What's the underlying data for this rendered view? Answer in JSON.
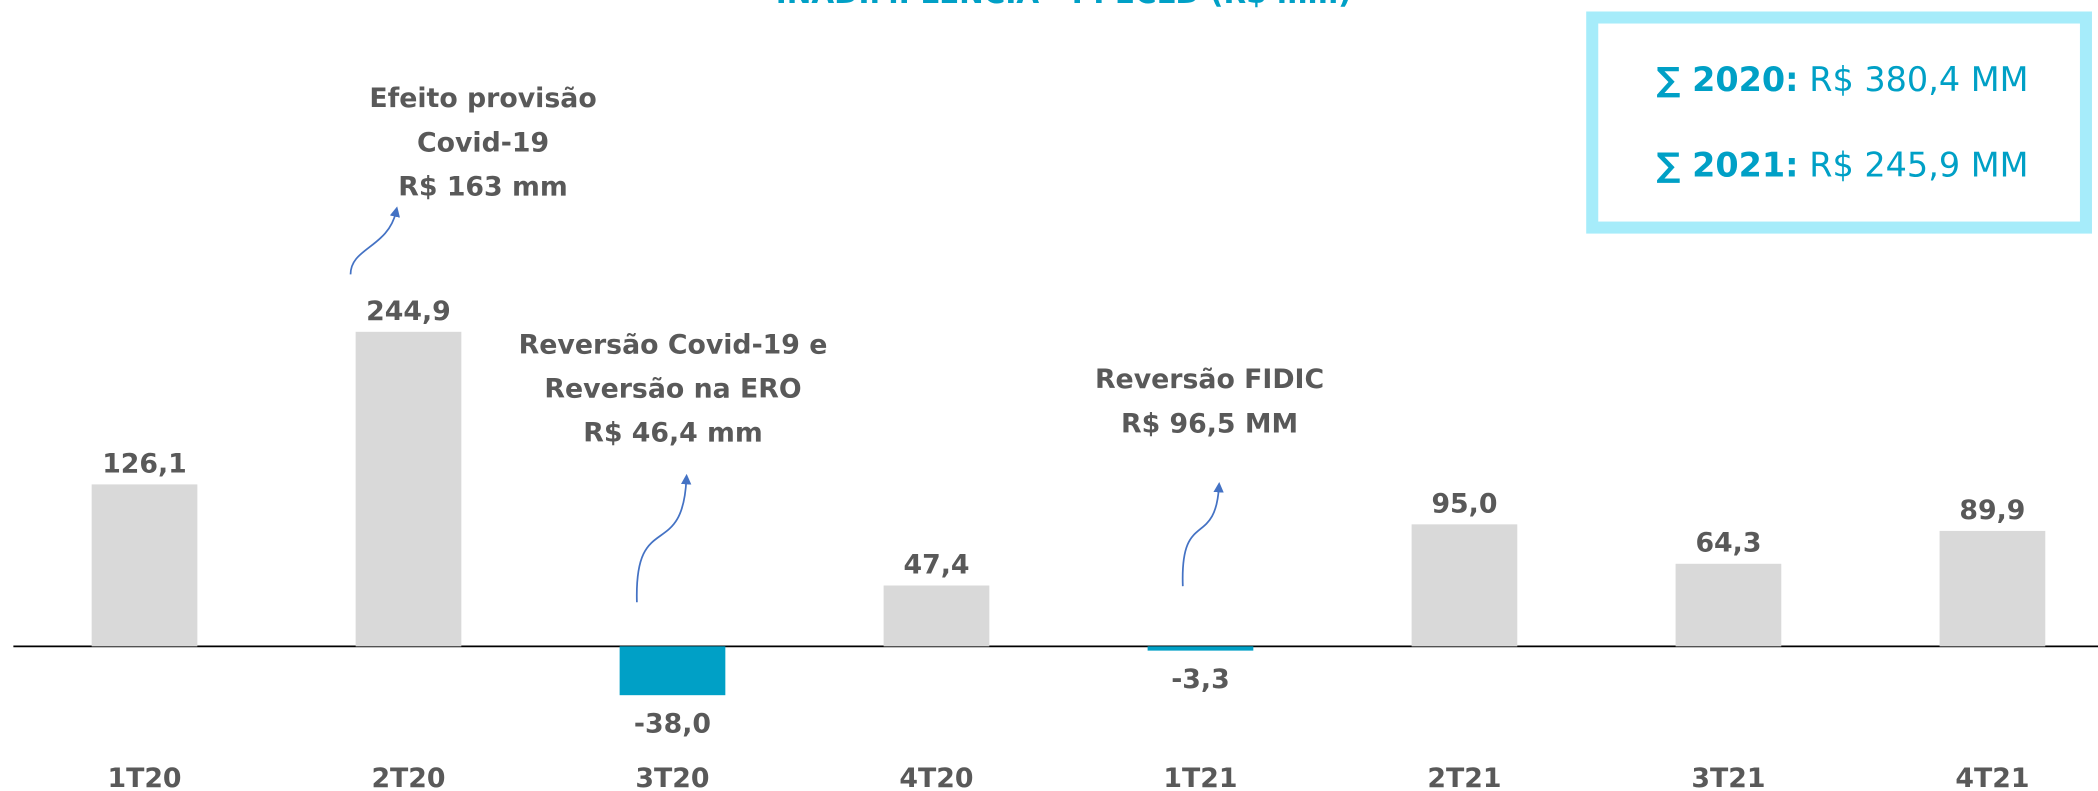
{
  "chart_data": {
    "type": "bar",
    "title": "INADIMPLÊNCIA - PPECLD (R$ mm)",
    "categories": [
      "1T20",
      "2T20",
      "3T20",
      "4T20",
      "1T21",
      "2T21",
      "3T21",
      "4T21"
    ],
    "values": [
      126.1,
      244.9,
      -38.0,
      47.4,
      -3.3,
      95.0,
      64.3,
      89.9
    ],
    "value_labels": [
      "126,1",
      "244,9",
      "-38,0",
      "47,4",
      "-3,3",
      "95,0",
      "64,3",
      "89,9"
    ],
    "color": "#d9d9d9",
    "negative_color": "#00a0c6",
    "annotations": [
      {
        "lines": [
          "Efeito provisão",
          "Covid-19",
          "R$ 163 mm"
        ]
      },
      {
        "lines": [
          "Reversão Covid-19 e",
          "Reversão na ERO",
          "R$ 46,4 mm"
        ]
      },
      {
        "lines": [
          "Reversão FIDIC",
          "R$ 96,5 MM"
        ]
      }
    ],
    "summary": [
      {
        "label": "∑ 2020:",
        "value": "R$ 380,4 MM"
      },
      {
        "label": "∑ 2021:",
        "value": "R$ 245,9 MM"
      }
    ]
  }
}
